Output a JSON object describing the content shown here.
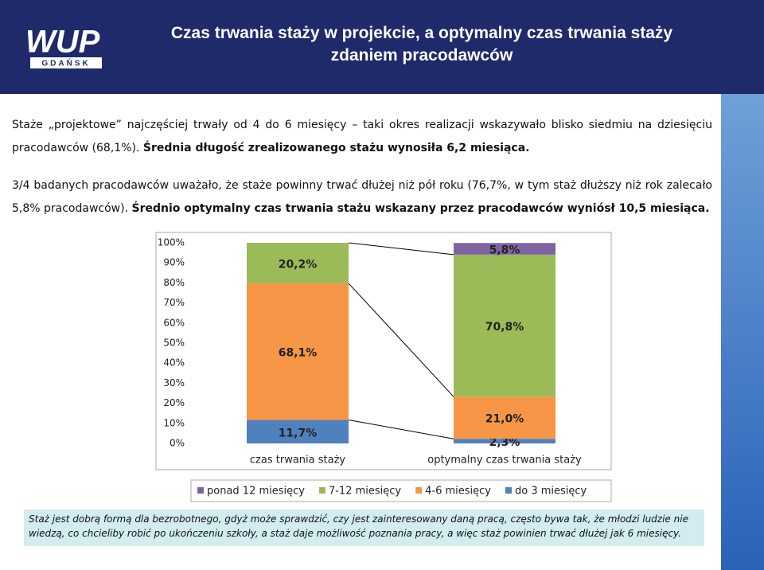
{
  "header": {
    "title_lines": [
      "Czas trwania staży w projekcie, a optymalny czas trwania staży",
      "zdaniem pracodawców"
    ],
    "logo": {
      "text": "WUP",
      "subtext": "GDAŃSK"
    }
  },
  "paragraphs": [
    [
      {
        "text": "Staże „projektowe” najczęściej trwały od 4 do 6 miesięcy – taki okres realizacji wskazywało blisko siedmiu na dziesięciu pracodawców (68,1%). ",
        "bold": false
      },
      {
        "text": "Średnia długość zrealizowanego stażu wynosiła 6,2 miesiąca.",
        "bold": true
      }
    ],
    [
      {
        "text": "3/4 badanych pracodawców uważało, że staże powinny trwać dłużej niż pół roku (76,7%, w tym staż dłuższy niż rok zalecało 5,8% pracodawców). ",
        "bold": false
      },
      {
        "text": "Średnio optymalny czas trwania stażu wskazany przez pracodawców wyniósł 10,5 miesiąca.",
        "bold": true
      }
    ]
  ],
  "chart_data": {
    "type": "stacked-bar",
    "categories": [
      "czas trwania staży",
      "optymalny czas trwania staży"
    ],
    "series": [
      {
        "name": "ponad 12 miesięcy",
        "color": "#8064a2",
        "values": [
          0,
          5.8
        ],
        "value_labels": [
          null,
          "5,8%"
        ]
      },
      {
        "name": "7-12 miesięcy",
        "color": "#9bbb59",
        "values": [
          20.2,
          70.8
        ],
        "value_labels": [
          "20,2%",
          "70,8%"
        ]
      },
      {
        "name": "4-6 miesięcy",
        "color": "#f79646",
        "values": [
          68.1,
          21.0
        ],
        "value_labels": [
          "68,1%",
          "21,0%"
        ]
      },
      {
        "name": "do 3 miesięcy",
        "color": "#4f81bd",
        "values": [
          11.7,
          2.3
        ],
        "value_labels": [
          "11,7%",
          "2,3%"
        ]
      }
    ],
    "ylim": [
      0,
      100
    ],
    "yticks": [
      {
        "value": 0,
        "label": "0%"
      },
      {
        "value": 10,
        "label": "10%"
      },
      {
        "value": 20,
        "label": "20%"
      },
      {
        "value": 30,
        "label": "30%"
      },
      {
        "value": 40,
        "label": "40%"
      },
      {
        "value": 50,
        "label": "50%"
      },
      {
        "value": 60,
        "label": "60%"
      },
      {
        "value": 70,
        "label": "70%"
      },
      {
        "value": 80,
        "label": "80%"
      },
      {
        "value": 90,
        "label": "90%"
      },
      {
        "value": 100,
        "label": "100%"
      }
    ],
    "legend": "bottom"
  },
  "note": "Staż jest dobrą formą dla bezrobotnego, gdyż może sprawdzić, czy jest zainteresowany daną pracą, często bywa tak, że młodzi ludzie nie wiedzą, co chcieliby robić po ukończeniu szkoły, a staż daje możliwość poznania pracy, a więc staż powinien trwać dłużej jak 6 miesięcy."
}
